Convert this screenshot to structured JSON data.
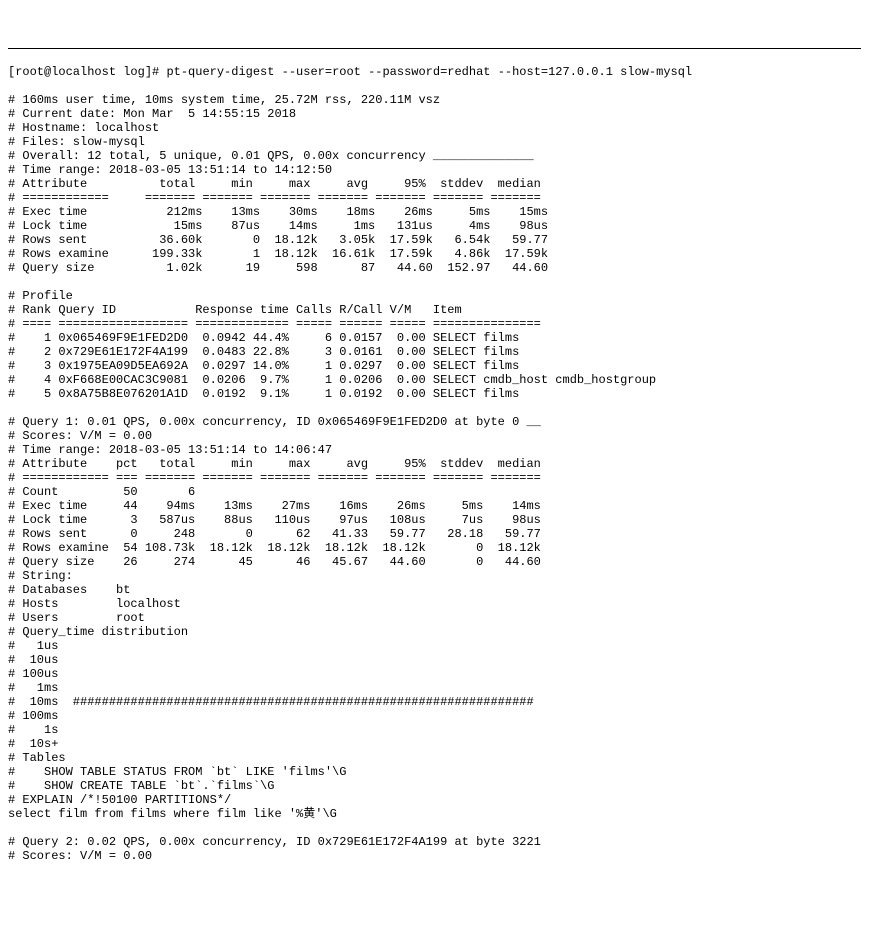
{
  "prompt": "[root@localhost log]# ",
  "command": "pt-query-digest --user=root --password=redhat --host=127.0.0.1 slow-mysql",
  "header": {
    "usage": "# 160ms user time, 10ms system time, 25.72M rss, 220.11M vsz",
    "date": "# Current date: Mon Mar  5 14:55:15 2018",
    "hostname": "# Hostname: localhost",
    "files": "# Files: slow-mysql",
    "overall": "# Overall: 12 total, 5 unique, 0.01 QPS, 0.00x concurrency ______________",
    "timerange": "# Time range: 2018-03-05 13:51:14 to 14:12:50"
  },
  "attrHeader": "# Attribute          total     min     max     avg     95%  stddev  median",
  "attrDiv": "# ============     ======= ======= ======= ======= ======= ======= =======",
  "attrs": {
    "exec": "# Exec time           212ms    13ms    30ms    18ms    26ms     5ms    15ms",
    "lock": "# Lock time            15ms    87us    14ms     1ms   131us     4ms    98us",
    "sent": "# Rows sent          36.60k       0  18.12k   3.05k  17.59k   6.54k   59.77",
    "exam": "# Rows examine      199.33k       1  18.12k  16.61k  17.59k   4.86k  17.59k",
    "qsize": "# Query size          1.02k      19     598      87   44.60  152.97   44.60"
  },
  "profile": {
    "title": "# Profile",
    "head": "# Rank Query ID           Response time Calls R/Call V/M   Item",
    "div": "# ==== ================== ============= ===== ====== ===== ===============",
    "rows": [
      "#    1 0x065469F9E1FED2D0  0.0942 44.4%     6 0.0157  0.00 SELECT films",
      "#    2 0x729E61E172F4A199  0.0483 22.8%     3 0.0161  0.00 SELECT films",
      "#    3 0x1975EA09D5EA692A  0.0297 14.0%     1 0.0297  0.00 SELECT films",
      "#    4 0xF668E00CAC3C9081  0.0206  9.7%     1 0.0206  0.00 SELECT cmdb_host cmdb_hostgroup",
      "#    5 0x8A75B8E076201A1D  0.0192  9.1%     1 0.0192  0.00 SELECT films"
    ]
  },
  "q1": {
    "title": "# Query 1: 0.01 QPS, 0.00x concurrency, ID 0x065469F9E1FED2D0 at byte 0 __",
    "scores": "# Scores: V/M = 0.00",
    "timerange": "# Time range: 2018-03-05 13:51:14 to 14:06:47",
    "attrHead": "# Attribute    pct   total     min     max     avg     95%  stddev  median",
    "attrDiv": "# ============ === ======= ======= ======= ======= ======= ======= =======",
    "count": "# Count         50       6",
    "exec": "# Exec time     44    94ms    13ms    27ms    16ms    26ms     5ms    14ms",
    "lock": "# Lock time      3   587us    88us   110us    97us   108us     7us    98us",
    "sent": "# Rows sent      0     248       0      62   41.33   59.77   28.18   59.77",
    "exam": "# Rows examine  54 108.73k  18.12k  18.12k  18.12k  18.12k       0  18.12k",
    "qsize": "# Query size    26     274      45      46   45.67   44.60       0   44.60",
    "string": "# String:",
    "db": "# Databases    bt",
    "hosts": "# Hosts        localhost",
    "users": "# Users        root",
    "qtdist": "# Query_time distribution",
    "d1us": "#   1us",
    "d10us": "#  10us",
    "d100us": "# 100us",
    "d1ms": "#   1ms",
    "d10ms": "#  10ms  ################################################################",
    "d100ms": "# 100ms",
    "d1s": "#    1s",
    "d10s": "#  10s+",
    "tables": "# Tables",
    "show1": "#    SHOW TABLE STATUS FROM `bt` LIKE 'films'\\G",
    "show2": "#    SHOW CREATE TABLE `bt`.`films`\\G",
    "explain": "# EXPLAIN /*!50100 PARTITIONS*/",
    "select": "select film from films where film like '%黄'\\G"
  },
  "q2": {
    "title": "# Query 2: 0.02 QPS, 0.00x concurrency, ID 0x729E61E172F4A199 at byte 3221",
    "scores": "# Scores: V/M = 0.00"
  }
}
